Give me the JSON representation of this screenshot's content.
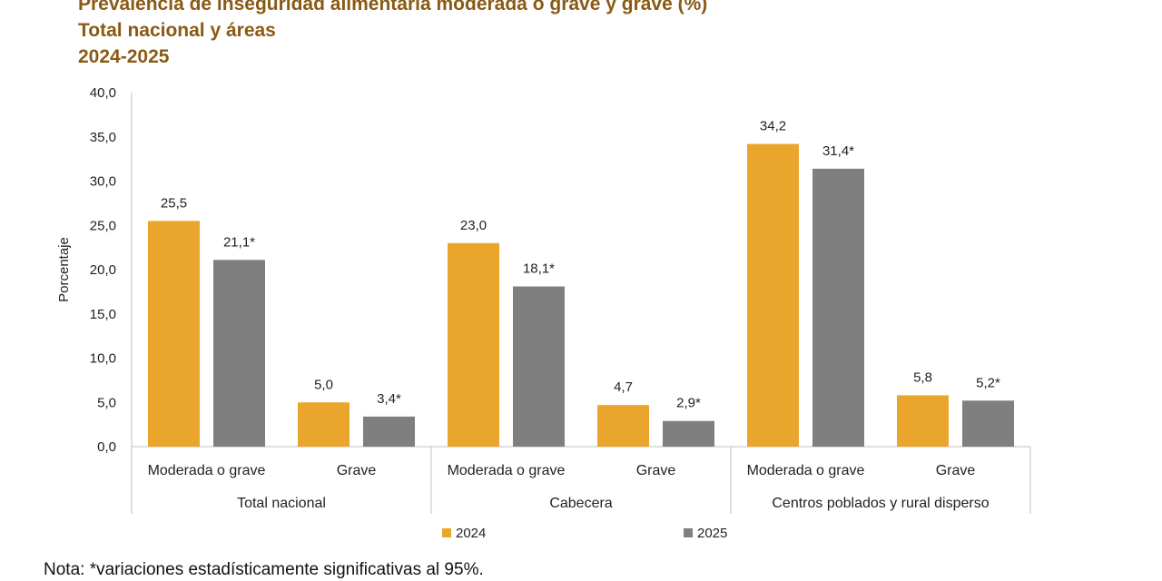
{
  "header": {
    "title_lines": [
      "Prevalencia de inseguridad alimentaria moderada o grave y grave (%)",
      "Total nacional y áreas",
      "2024-2025"
    ]
  },
  "note": "Nota: *variaciones estadísticamente significativas al 95%.",
  "chart_data": {
    "type": "bar",
    "title": "Prevalencia de inseguridad alimentaria moderada o grave y grave (%)",
    "subtitle": "Total nacional y áreas 2024-2025",
    "ylabel": "Porcentaje",
    "xlabel": "",
    "ylim": [
      0,
      40
    ],
    "yticks": [
      "0,0",
      "5,0",
      "10,0",
      "15,0",
      "20,0",
      "25,0",
      "30,0",
      "35,0",
      "40,0"
    ],
    "grid": false,
    "legend_position": "bottom",
    "groups": [
      {
        "name": "Total nacional",
        "categories": [
          "Moderada o grave",
          "Grave"
        ]
      },
      {
        "name": "Cabecera",
        "categories": [
          "Moderada o grave",
          "Grave"
        ]
      },
      {
        "name": "Centros poblados y rural disperso",
        "categories": [
          "Moderada o grave",
          "Grave"
        ]
      }
    ],
    "series": [
      {
        "name": "2024",
        "color": "#eaa62c",
        "values": [
          25.5,
          5.0,
          23.0,
          4.7,
          34.2,
          5.8
        ],
        "labels": [
          "25,5",
          "5,0",
          "23,0",
          "4,7",
          "34,2",
          "5,8"
        ]
      },
      {
        "name": "2025",
        "color": "#7f7f7f",
        "values": [
          21.1,
          3.4,
          18.1,
          2.9,
          31.4,
          5.2
        ],
        "labels": [
          "21,1*",
          "3,4*",
          "18,1*",
          "2,9*",
          "31,4*",
          "5,2*"
        ]
      }
    ]
  }
}
